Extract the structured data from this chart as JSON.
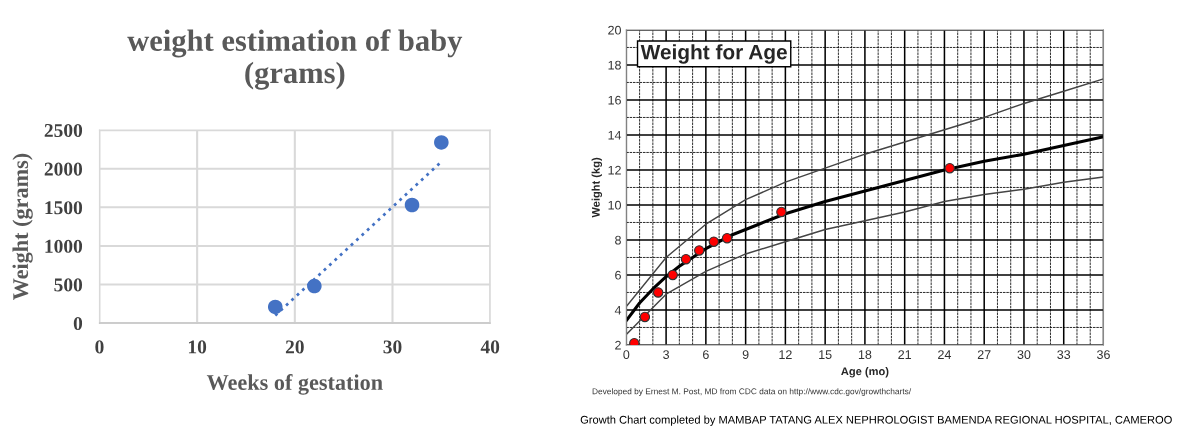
{
  "chart_data": [
    {
      "type": "scatter",
      "title": "weight estimation of baby\n(grams)",
      "xlabel": "Weeks of gestation",
      "ylabel": "Weight (grams)",
      "series": [
        {
          "color": "#4472c4",
          "marker": "circle",
          "x": [
            18,
            22,
            32,
            35
          ],
          "values": [
            210,
            480,
            1530,
            2340
          ]
        },
        {
          "type": "line",
          "color": "#4472c4",
          "line_style": "dotted",
          "marker": "none",
          "x": [
            18,
            35
          ],
          "values": [
            100,
            2090
          ]
        }
      ],
      "xlim": [
        0,
        40
      ],
      "xticks": [
        0,
        10,
        20,
        30,
        40
      ],
      "ylim": [
        0,
        2500
      ],
      "yticks": [
        0,
        500,
        1000,
        1500,
        2000,
        2500
      ],
      "grid": true,
      "legend": false
    },
    {
      "type": "line",
      "title": "Weight for Age",
      "xlabel": "Age (mo)",
      "ylabel": "Weight (kg)",
      "annotations": [
        "Developed by Ernest M. Post, MD from CDC data on http://www.cdc.gov/growthcharts/",
        "Growth Chart completed by MAMBAP TATANG ALEX NEPHROLOGIST BAMENDA REGIONAL HOSPITAL, CAMEROO"
      ],
      "series": [
        {
          "color": "#444444",
          "marker": "none",
          "line_style": "solid",
          "x": [
            0,
            3,
            6,
            9,
            12,
            15,
            18,
            21,
            24,
            27,
            30,
            33,
            36
          ],
          "values": [
            4.2,
            7.0,
            8.9,
            10.3,
            11.3,
            12.1,
            12.9,
            13.6,
            14.3,
            15.0,
            15.8,
            16.5,
            17.2
          ]
        },
        {
          "color": "#000000",
          "marker": "none",
          "line_style": "solid",
          "x": [
            0,
            1,
            2,
            3,
            4,
            5,
            6,
            7,
            8,
            9,
            10,
            12,
            15,
            18,
            21,
            24,
            27,
            30,
            33,
            36
          ],
          "values": [
            3.4,
            4.4,
            5.2,
            5.9,
            6.5,
            7.0,
            7.5,
            7.9,
            8.3,
            8.6,
            8.9,
            9.5,
            10.2,
            10.8,
            11.4,
            12.0,
            12.5,
            12.9,
            13.4,
            13.9
          ]
        },
        {
          "color": "#444444",
          "marker": "none",
          "line_style": "solid",
          "x": [
            0,
            3,
            6,
            9,
            12,
            15,
            18,
            21,
            24,
            27,
            30,
            33,
            36
          ],
          "values": [
            2.6,
            4.9,
            6.2,
            7.2,
            7.9,
            8.6,
            9.1,
            9.6,
            10.2,
            10.6,
            10.9,
            11.3,
            11.6
          ]
        },
        {
          "type": "scatter",
          "color": "#ff0000",
          "marker": "circle",
          "x": [
            0.6,
            1.4,
            2.4,
            3.5,
            4.5,
            5.5,
            6.6,
            7.6,
            11.7,
            24.4
          ],
          "values": [
            2.1,
            3.6,
            5.0,
            6.0,
            6.9,
            7.4,
            7.9,
            8.1,
            9.6,
            12.1
          ]
        }
      ],
      "xlim": [
        0,
        36
      ],
      "xticks": [
        0,
        3,
        6,
        9,
        12,
        15,
        18,
        21,
        24,
        27,
        30,
        33,
        36
      ],
      "ylim": [
        2,
        20
      ],
      "yticks": [
        2,
        4,
        6,
        8,
        10,
        12,
        14,
        16,
        18,
        20
      ],
      "grid": true,
      "legend": false
    }
  ]
}
